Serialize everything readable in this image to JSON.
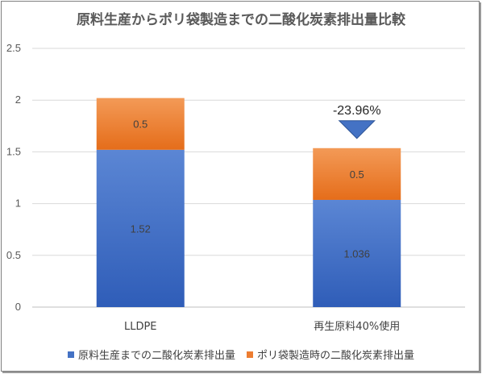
{
  "chart_data": {
    "type": "bar",
    "stacked": true,
    "title": "原料生産からポリ袋製造までの二酸化炭素排出量比較",
    "categories": [
      "LLDPE",
      "再生原料40%使用"
    ],
    "series": [
      {
        "name": "原料生産までの二酸化炭素排出量",
        "values": [
          1.52,
          1.036
        ],
        "labels": [
          "1.52",
          "1.036"
        ],
        "color": "#4472c4"
      },
      {
        "name": "ポリ袋製造時の二酸化炭素排出量",
        "values": [
          0.5,
          0.5
        ],
        "labels": [
          "0.5",
          "0.5"
        ],
        "color": "#ed7d31"
      }
    ],
    "ylim": [
      0,
      2.5
    ],
    "yticks": [
      "0",
      "0.5",
      "1",
      "1.5",
      "2",
      "2.5"
    ],
    "grid": true,
    "legend": "bottom",
    "annotation": {
      "text": "-23.96%",
      "category_index": 1
    }
  }
}
